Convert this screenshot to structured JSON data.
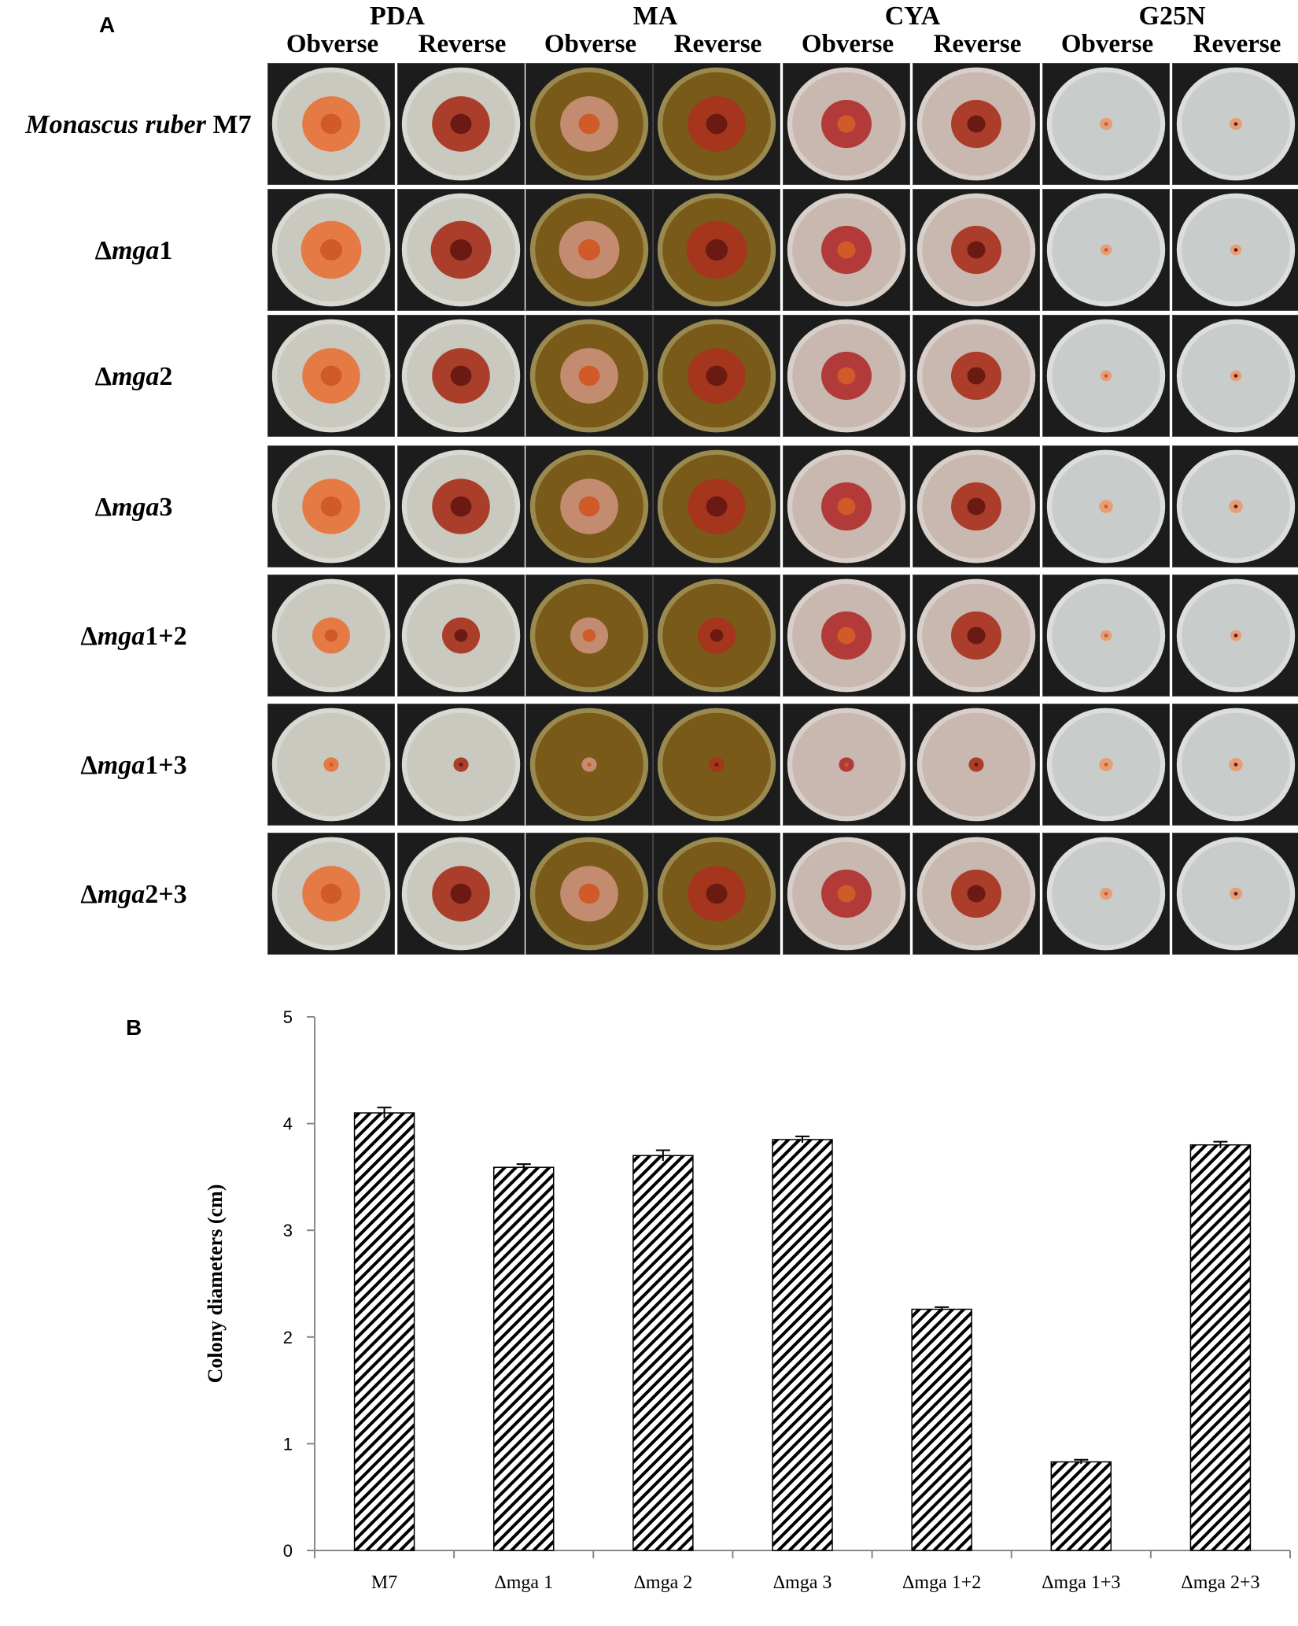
{
  "figure": {
    "panel_a_label": "A",
    "panel_b_label": "B",
    "media": [
      {
        "name": "PDA",
        "sides": [
          "Obverse",
          "Reverse"
        ]
      },
      {
        "name": "MA",
        "sides": [
          "Obverse",
          "Reverse"
        ]
      },
      {
        "name": "CYA",
        "sides": [
          "Obverse",
          "Reverse"
        ]
      },
      {
        "name": "G25N",
        "sides": [
          "Obverse",
          "Reverse"
        ]
      }
    ],
    "strains": [
      {
        "prefix": "",
        "italic": "Monascus ruber",
        "suffix": " M7"
      },
      {
        "prefix": "Δ",
        "italic": "mga",
        "suffix": "1"
      },
      {
        "prefix": "Δ",
        "italic": "mga",
        "suffix": "2"
      },
      {
        "prefix": "Δ",
        "italic": "mga",
        "suffix": "3"
      },
      {
        "prefix": "Δ",
        "italic": "mga",
        "suffix": "1+2"
      },
      {
        "prefix": "Δ",
        "italic": "mga",
        "suffix": "1+3"
      },
      {
        "prefix": "Δ",
        "italic": "mga",
        "suffix": "2+3"
      }
    ]
  },
  "plate_colors": {
    "PDA": {
      "agar": "#c9c9c0",
      "colony": "#e8733a",
      "rim": "#d9d9d2"
    },
    "MA": {
      "agar": "#7a5a18",
      "colony": "#c9907a",
      "rim": "#9a8a50"
    },
    "CYA": {
      "agar": "#c8b8b0",
      "colony": "#b03030",
      "rim": "#d8d0c8"
    },
    "G25N": {
      "agar": "#c8ccca",
      "colony": "#e89a70",
      "rim": "#dcdedc"
    }
  },
  "chart_data": {
    "type": "bar",
    "categories": [
      "M7",
      "Δmga 1",
      "Δmga 2",
      "Δmga 3",
      "Δmga 1+2",
      "Δmga 1+3",
      "Δmga 2+3"
    ],
    "values": [
      4.1,
      3.59,
      3.7,
      3.85,
      2.26,
      0.83,
      3.8
    ],
    "errors": [
      0.05,
      0.03,
      0.05,
      0.03,
      0.02,
      0.02,
      0.03
    ],
    "ylabel": "Colony diameters (cm)",
    "ylim": [
      0,
      5
    ],
    "yticks": [
      "0",
      "1",
      "2",
      "3",
      "4",
      "5"
    ],
    "fill_pattern": "diagonal hatch",
    "grid": false
  }
}
